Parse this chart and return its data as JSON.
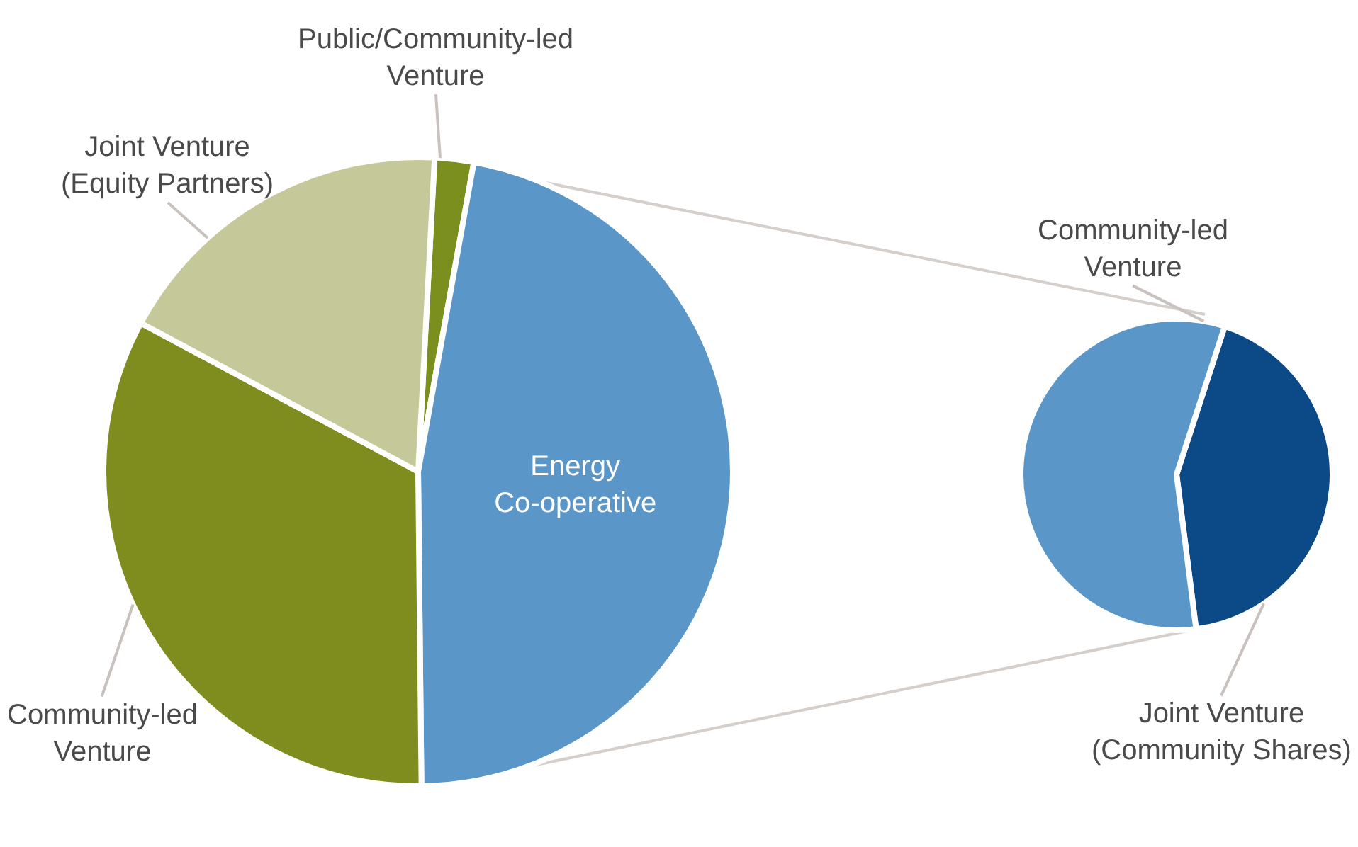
{
  "chart_data": [
    {
      "type": "pie",
      "categories": [
        "Public/Community-led Venture",
        "Energy Co-operative",
        "Community-led Venture",
        "Joint Venture (Equity Partners)"
      ],
      "values": [
        2,
        47,
        33,
        18
      ],
      "colors": [
        "#7b8f1e",
        "#5a96c8",
        "#7f8c1e",
        "#c5c99a"
      ],
      "legend": false
    },
    {
      "type": "pie",
      "categories": [
        "Joint Venture (Community Shares)",
        "Community-led Venture"
      ],
      "values": [
        43,
        57
      ],
      "colors": [
        "#0c4a87",
        "#5a96c8"
      ],
      "legend": false
    }
  ]
}
